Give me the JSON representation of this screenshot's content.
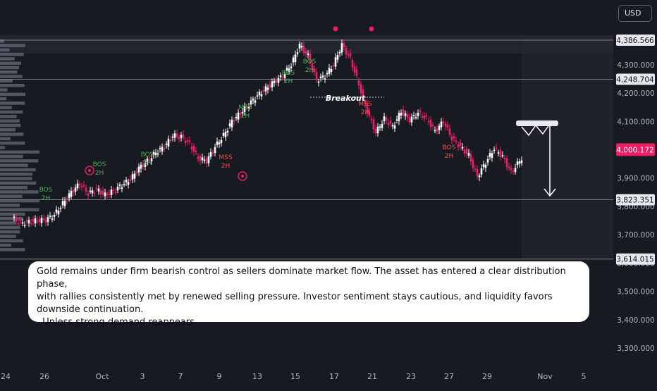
{
  "currency": "USD",
  "colors": {
    "background": "#181a22",
    "up_candle": "#ffffff",
    "down_candle": "#e91e63",
    "bos_up": "#4caf50",
    "bos_down": "#ef5350",
    "marker": "#e91e63",
    "level_line": "#7a7e8a",
    "current_price_badge": "#e91e63"
  },
  "chart_data": {
    "type": "candlestick",
    "symbol_hint": "Gold",
    "interval": "2H",
    "y_axis_ticks": [
      3300,
      3400,
      3500,
      3600,
      3700,
      3800,
      3900,
      4000,
      4100,
      4200,
      4300
    ],
    "ylim": [
      3230,
      4470
    ],
    "x_axis_ticks": [
      "24",
      "26",
      "Oct",
      "3",
      "7",
      "9",
      "13",
      "15",
      "17",
      "21",
      "23",
      "27",
      "29",
      "Nov",
      "5"
    ],
    "price_levels": [
      {
        "label": "4,386.566",
        "value": 4386.566
      },
      {
        "label": "4,248.704",
        "value": 4248.704
      },
      {
        "label": "3,823.351",
        "value": 3823.351
      },
      {
        "label": "3,614.015",
        "value": 3614.015
      }
    ],
    "current_price": {
      "label": "4,000.172",
      "value": 4000.172
    },
    "price_path": [
      [
        0,
        3760
      ],
      [
        4,
        3740
      ],
      [
        8,
        3745
      ],
      [
        12,
        3750
      ],
      [
        16,
        3752
      ],
      [
        20,
        3770
      ],
      [
        24,
        3810
      ],
      [
        28,
        3850
      ],
      [
        32,
        3880
      ],
      [
        36,
        3845
      ],
      [
        40,
        3860
      ],
      [
        44,
        3840
      ],
      [
        48,
        3855
      ],
      [
        52,
        3875
      ],
      [
        56,
        3895
      ],
      [
        60,
        3935
      ],
      [
        64,
        3960
      ],
      [
        68,
        3990
      ],
      [
        72,
        4010
      ],
      [
        76,
        4050
      ],
      [
        80,
        4045
      ],
      [
        84,
        4020
      ],
      [
        88,
        3970
      ],
      [
        92,
        3960
      ],
      [
        96,
        4010
      ],
      [
        100,
        4050
      ],
      [
        104,
        4100
      ],
      [
        108,
        4130
      ],
      [
        112,
        4160
      ],
      [
        116,
        4190
      ],
      [
        120,
        4215
      ],
      [
        124,
        4240
      ],
      [
        128,
        4260
      ],
      [
        132,
        4300
      ],
      [
        136,
        4370
      ],
      [
        140,
        4330
      ],
      [
        144,
        4245
      ],
      [
        148,
        4260
      ],
      [
        152,
        4300
      ],
      [
        156,
        4370
      ],
      [
        160,
        4320
      ],
      [
        164,
        4230
      ],
      [
        168,
        4135
      ],
      [
        172,
        4060
      ],
      [
        176,
        4110
      ],
      [
        180,
        4080
      ],
      [
        184,
        4135
      ],
      [
        188,
        4105
      ],
      [
        192,
        4130
      ],
      [
        196,
        4110
      ],
      [
        200,
        4065
      ],
      [
        204,
        4100
      ],
      [
        208,
        4040
      ],
      [
        212,
        4010
      ],
      [
        216,
        3980
      ],
      [
        220,
        3905
      ],
      [
        224,
        3955
      ],
      [
        228,
        4005
      ],
      [
        232,
        3975
      ],
      [
        236,
        3920
      ],
      [
        240,
        3960
      ],
      [
        244,
        4000
      ]
    ],
    "annotations": [
      {
        "text": [
          "BOS",
          "2H"
        ],
        "kind": "bos_up",
        "near": "Sep 25"
      },
      {
        "text": [
          "BOS",
          "2H"
        ],
        "kind": "bos_up",
        "near": "Sep 30"
      },
      {
        "text": [
          "BOS",
          "2H"
        ],
        "kind": "bos_up",
        "near": "Oct 3"
      },
      {
        "text": [
          "MSS",
          "2H"
        ],
        "kind": "bos_up",
        "near": "Oct 10"
      },
      {
        "text": [
          "MSS",
          "2H"
        ],
        "kind": "bos_down",
        "near": "Oct 9"
      },
      {
        "text": [
          "BOS",
          "2H"
        ],
        "kind": "bos_up",
        "near": "Oct 14"
      },
      {
        "text": [
          "BOS",
          "2H"
        ],
        "kind": "bos_up",
        "near": "Oct 16"
      },
      {
        "text": [
          "MSS",
          "2H"
        ],
        "kind": "bos_down",
        "near": "Oct 21"
      },
      {
        "text": [
          "BOS",
          "2H"
        ],
        "kind": "bos_down",
        "near": "Oct 27"
      }
    ],
    "breakout_label": "Breakout",
    "projection": "downward arrow to 3,823.351 level"
  },
  "note": {
    "text": "Gold remains under firm bearish control as sellers dominate market flow. The asset has entered a clear distribution phase,\nwith rallies consistently met by renewed selling pressure. Investor sentiment stays cautious, and liquidity favors downside continuation.\n  Unless strong demand reappears,"
  }
}
